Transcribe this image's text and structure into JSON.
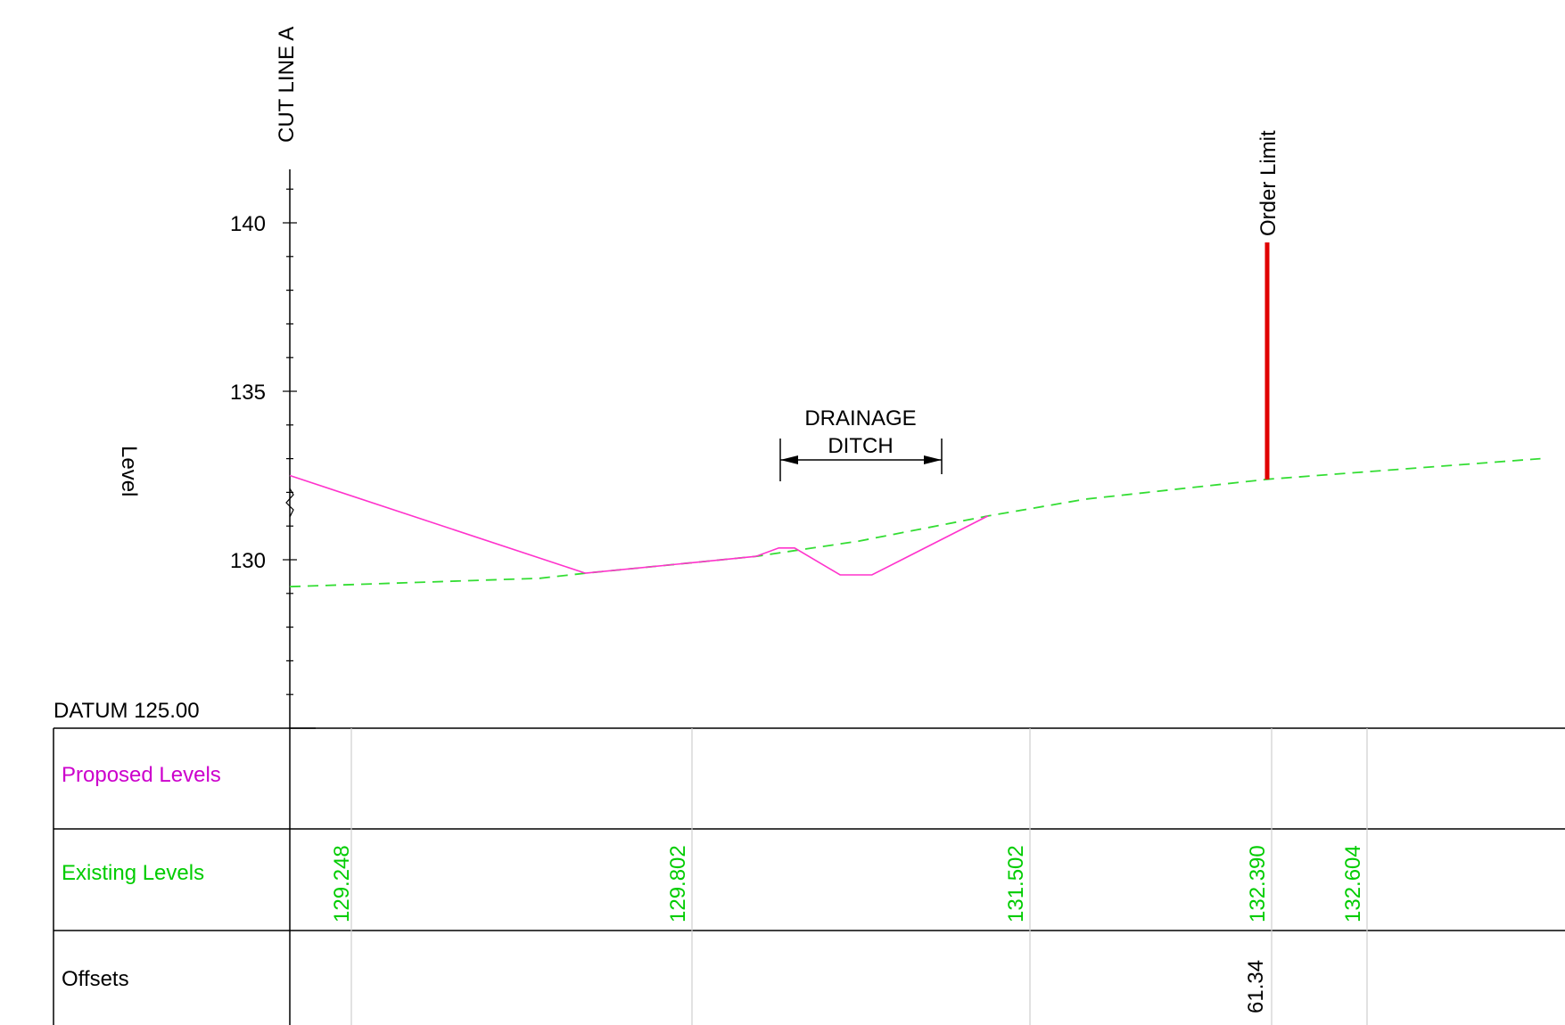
{
  "section": {
    "cut_line_label": "CUT LINE A",
    "axis_label": "Level",
    "y_ticks": [
      "140",
      "135",
      "130"
    ],
    "y_tick_values": [
      140,
      135,
      130
    ],
    "y_range": [
      125,
      141.5
    ],
    "datum_label": "DATUM 125.00",
    "annotation": {
      "line1": "DRAINAGE",
      "line2": "DITCH"
    },
    "order_limit_label": "Order Limit",
    "colors": {
      "proposed": "#ff33cc",
      "existing": "#33dd33",
      "order_limit": "#e00000",
      "table_text_proposed": "#cc00cc",
      "table_text_existing": "#00cc00"
    }
  },
  "table": {
    "rows": [
      {
        "label": "Proposed Levels",
        "values": []
      },
      {
        "label": "Existing Levels",
        "values": [
          "129.248",
          "129.802",
          "131.502",
          "132.390",
          "132.604"
        ]
      },
      {
        "label": "Offsets",
        "values": [
          "61.34"
        ]
      }
    ]
  },
  "chart_data": {
    "type": "line",
    "ylabel": "Level",
    "ylim": [
      125,
      141.5
    ],
    "series": [
      {
        "name": "Proposed Levels",
        "points": [
          [
            0,
            132.5
          ],
          [
            13,
            129.6
          ],
          [
            17.5,
            129.9
          ],
          [
            20.5,
            130.1
          ],
          [
            21.5,
            130.35
          ],
          [
            22.2,
            130.35
          ],
          [
            24.2,
            129.55
          ],
          [
            25.6,
            129.55
          ],
          [
            30.7,
            131.3
          ]
        ]
      },
      {
        "name": "Existing Levels",
        "points": [
          [
            0,
            129.2
          ],
          [
            11,
            129.45
          ],
          [
            13,
            129.6
          ],
          [
            17.5,
            129.9
          ],
          [
            20.5,
            130.1
          ],
          [
            25,
            130.55
          ],
          [
            30.7,
            131.3
          ],
          [
            35,
            131.8
          ],
          [
            43,
            132.39
          ],
          [
            55,
            133.0
          ]
        ]
      }
    ],
    "order_limit_offset": 43
  }
}
